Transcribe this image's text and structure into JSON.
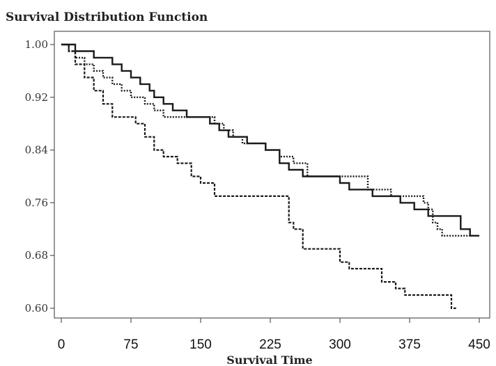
{
  "chart_data": {
    "type": "line",
    "step": true,
    "title": "Survival Distribution Function",
    "xlabel": "Survival Time",
    "ylabel": "",
    "xlim": [
      0,
      450
    ],
    "ylim": [
      0.6,
      1.0
    ],
    "xticks": [
      "0",
      "75",
      "150",
      "225",
      "300",
      "375",
      "450"
    ],
    "yticks": [
      "0.60",
      "0.68",
      "0.76",
      "0.84",
      "0.92",
      "1.00"
    ],
    "grid": false,
    "series": [
      {
        "style": "solid",
        "x": [
          0,
          8,
          15,
          25,
          35,
          45,
          55,
          65,
          75,
          85,
          95,
          100,
          110,
          120,
          135,
          150,
          160,
          170,
          180,
          190,
          200,
          210,
          220,
          235,
          245,
          260,
          270,
          300,
          310,
          335,
          365,
          380,
          395,
          430,
          440,
          450
        ],
        "y": [
          1.0,
          1.0,
          0.99,
          0.99,
          0.98,
          0.98,
          0.97,
          0.96,
          0.95,
          0.94,
          0.93,
          0.92,
          0.91,
          0.9,
          0.89,
          0.89,
          0.88,
          0.87,
          0.86,
          0.86,
          0.85,
          0.85,
          0.84,
          0.82,
          0.81,
          0.8,
          0.8,
          0.79,
          0.78,
          0.77,
          0.76,
          0.75,
          0.74,
          0.72,
          0.71,
          0.71
        ]
      },
      {
        "style": "dotted",
        "x": [
          0,
          8,
          15,
          25,
          35,
          45,
          55,
          65,
          75,
          90,
          100,
          110,
          125,
          165,
          175,
          185,
          195,
          220,
          235,
          250,
          265,
          300,
          330,
          355,
          390,
          395,
          400,
          405,
          410,
          450
        ],
        "y": [
          1.0,
          0.99,
          0.98,
          0.97,
          0.96,
          0.95,
          0.94,
          0.93,
          0.92,
          0.91,
          0.9,
          0.89,
          0.89,
          0.88,
          0.87,
          0.86,
          0.85,
          0.84,
          0.83,
          0.82,
          0.8,
          0.8,
          0.78,
          0.77,
          0.76,
          0.75,
          0.73,
          0.72,
          0.71,
          0.71
        ]
      },
      {
        "style": "dashed",
        "x": [
          0,
          8,
          15,
          25,
          35,
          45,
          55,
          70,
          80,
          90,
          100,
          110,
          125,
          140,
          150,
          165,
          185,
          200,
          245,
          250,
          260,
          300,
          310,
          345,
          360,
          370,
          420,
          425
        ],
        "y": [
          1.0,
          0.99,
          0.97,
          0.95,
          0.93,
          0.91,
          0.89,
          0.89,
          0.88,
          0.86,
          0.84,
          0.83,
          0.82,
          0.8,
          0.79,
          0.77,
          0.77,
          0.77,
          0.73,
          0.72,
          0.69,
          0.67,
          0.66,
          0.64,
          0.63,
          0.62,
          0.6,
          0.6
        ]
      }
    ]
  }
}
